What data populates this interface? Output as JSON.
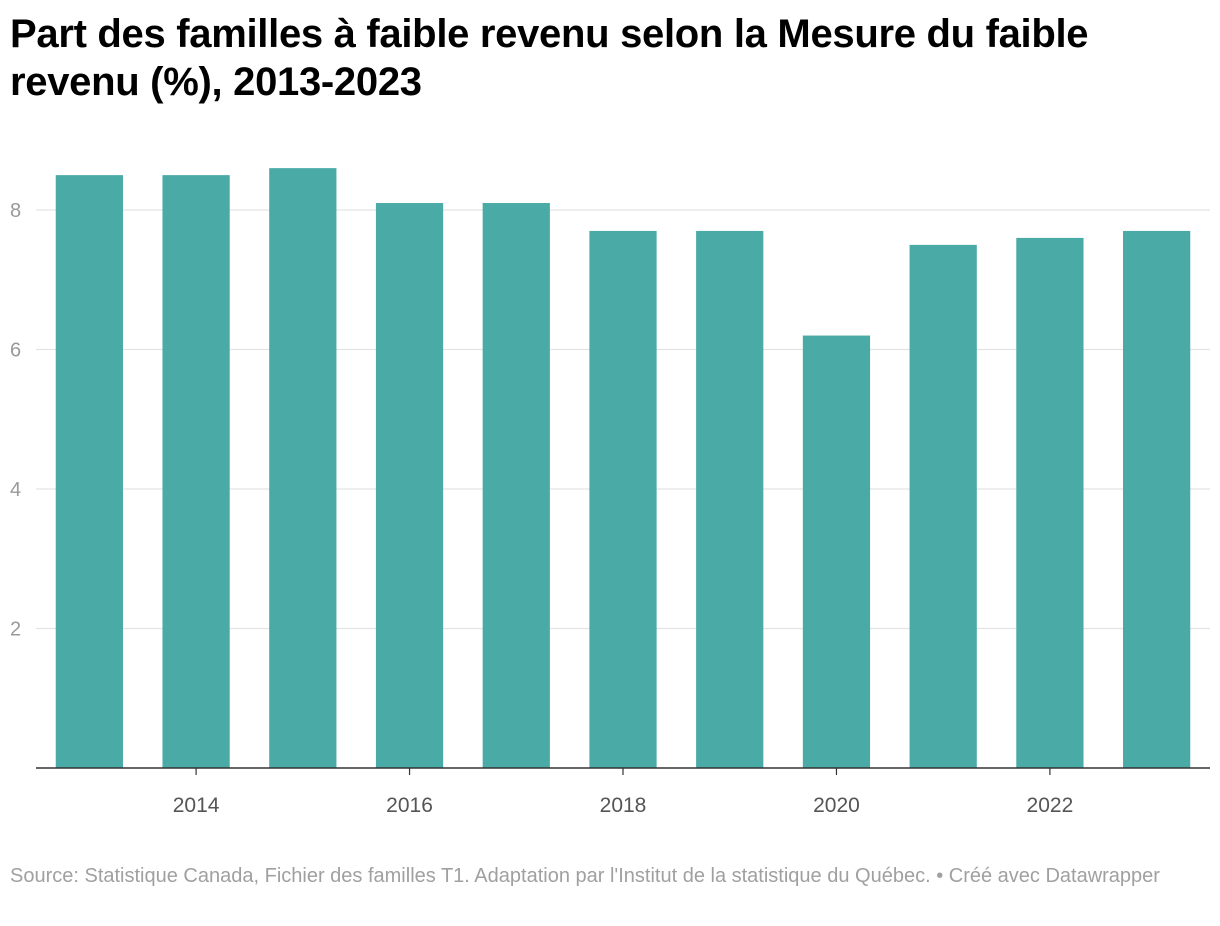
{
  "header": {
    "title": "Part des familles à faible revenu selon la Mesure du faible revenu (%), 2013-2023"
  },
  "footer": {
    "source": "Source: Statistique Canada, Fichier des familles T1. Adaptation par l'Institut de la statistique du Québec. • Créé avec Datawrapper"
  },
  "colors": {
    "bar": "#49aaa6",
    "grid": "#e3e3e3",
    "axis": "#333333"
  },
  "chart_data": {
    "type": "bar",
    "title": "Part des familles à faible revenu selon la Mesure du faible revenu (%), 2013-2023",
    "categories": [
      "2013",
      "2014",
      "2015",
      "2016",
      "2017",
      "2018",
      "2019",
      "2020",
      "2021",
      "2022",
      "2023"
    ],
    "values": [
      8.5,
      8.5,
      8.6,
      8.1,
      8.1,
      7.7,
      7.7,
      6.2,
      7.5,
      7.6,
      7.7
    ],
    "x_tick_labels": [
      "2014",
      "2016",
      "2018",
      "2020",
      "2022"
    ],
    "y_ticks": [
      2,
      4,
      6,
      8
    ],
    "ylim": [
      0,
      8.6
    ],
    "grid": true,
    "xlabel": "",
    "ylabel": ""
  }
}
